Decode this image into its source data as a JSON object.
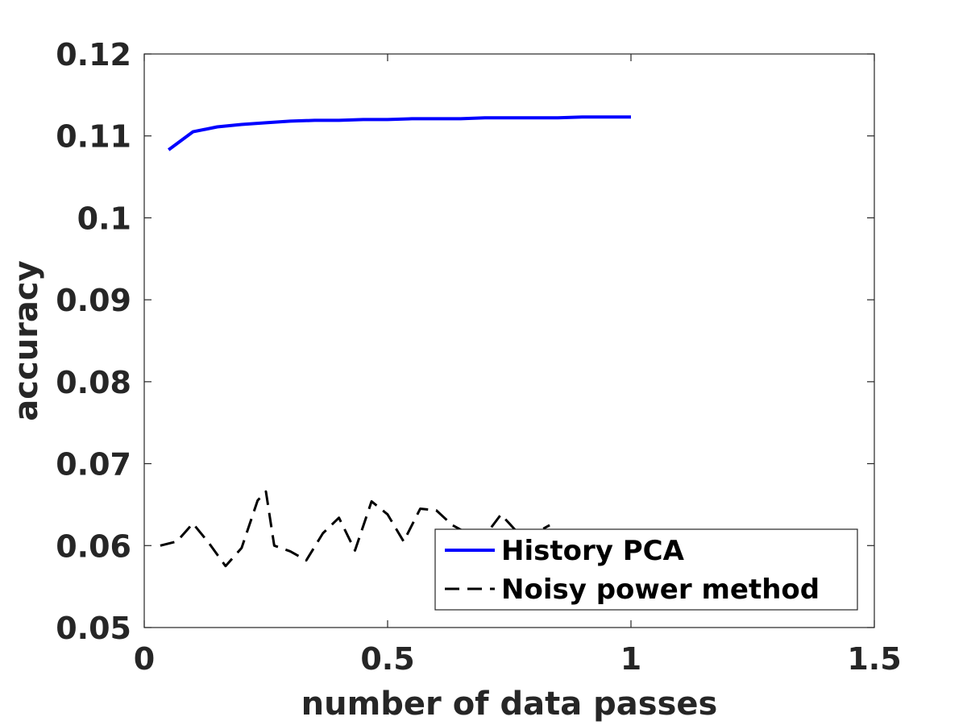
{
  "chart_data": {
    "type": "line",
    "title": "",
    "xlabel": "number of data passes",
    "ylabel": "accuracy",
    "xlim": [
      0,
      1.5
    ],
    "ylim": [
      0.05,
      0.12
    ],
    "xticks": [
      "0",
      "0.5",
      "1",
      "1.5"
    ],
    "yticks": [
      "0.05",
      "0.06",
      "0.07",
      "0.08",
      "0.09",
      "0.1",
      "0.11",
      "0.12"
    ],
    "xtick_values": [
      0,
      0.5,
      1,
      1.5
    ],
    "ytick_values": [
      0.05,
      0.06,
      0.07,
      0.08,
      0.09,
      0.1,
      0.11,
      0.12
    ],
    "grid": false,
    "legend_position": "bottom-right",
    "series": [
      {
        "name": "History PCA",
        "color": "#0000ff",
        "style": "solid",
        "x": [
          0.05,
          0.1,
          0.15,
          0.2,
          0.25,
          0.3,
          0.35,
          0.4,
          0.45,
          0.5,
          0.55,
          0.6,
          0.65,
          0.7,
          0.75,
          0.8,
          0.85,
          0.9,
          0.95,
          1.0
        ],
        "y": [
          0.1083,
          0.1105,
          0.1111,
          0.1114,
          0.1116,
          0.1118,
          0.1119,
          0.1119,
          0.112,
          0.112,
          0.1121,
          0.1121,
          0.1121,
          0.1122,
          0.1122,
          0.1122,
          0.1122,
          0.1123,
          0.1123,
          0.1123
        ]
      },
      {
        "name": "Noisy power method",
        "color": "#000000",
        "style": "dashed",
        "x": [
          0.033,
          0.067,
          0.1,
          0.133,
          0.167,
          0.2,
          0.233,
          0.25,
          0.267,
          0.3,
          0.333,
          0.367,
          0.4,
          0.433,
          0.467,
          0.5,
          0.533,
          0.567,
          0.6,
          0.633,
          0.667,
          0.7,
          0.733,
          0.767,
          0.8,
          0.833
        ],
        "y": [
          0.06,
          0.0605,
          0.0627,
          0.0603,
          0.0575,
          0.0597,
          0.0655,
          0.0666,
          0.06,
          0.0593,
          0.0582,
          0.0615,
          0.0634,
          0.0594,
          0.0654,
          0.0638,
          0.0605,
          0.0645,
          0.0643,
          0.0625,
          0.0614,
          0.0612,
          0.0638,
          0.0616,
          0.0614,
          0.0625
        ]
      }
    ]
  }
}
